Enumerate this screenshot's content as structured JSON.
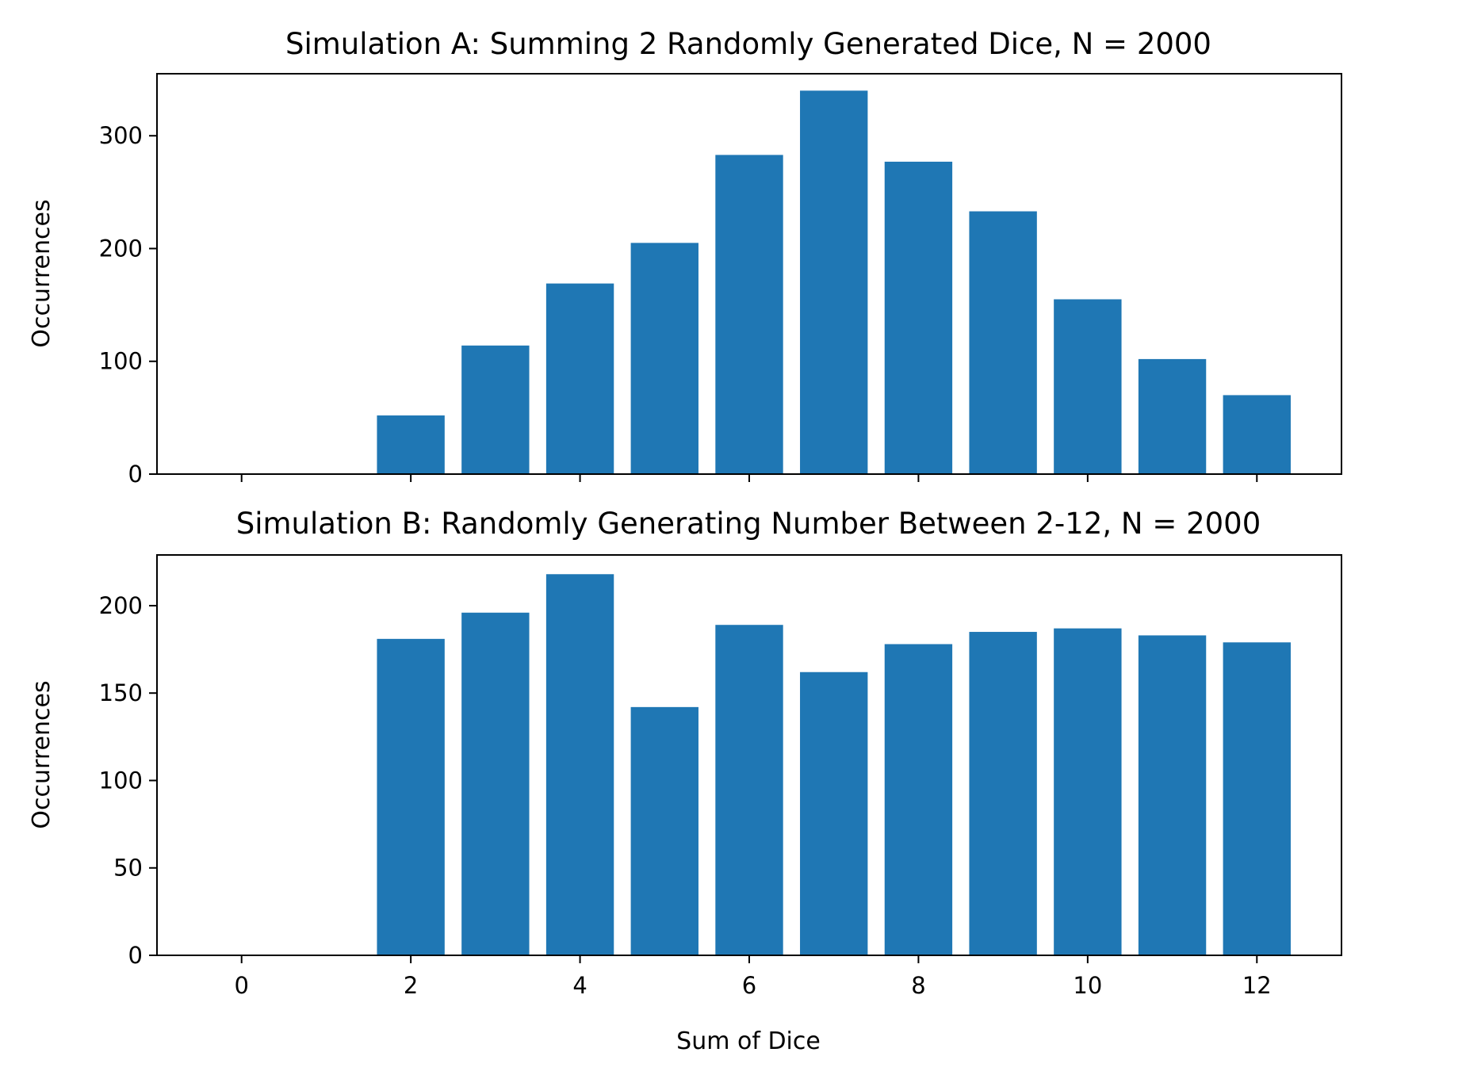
{
  "chart_data": [
    {
      "type": "bar",
      "title": "Simulation A: Summing 2 Randomly Generated Dice, N = 2000",
      "xlabel": "",
      "ylabel": "Occurrences",
      "color": "#1f77b4",
      "x": [
        2,
        3,
        4,
        5,
        6,
        7,
        8,
        9,
        10,
        11,
        12
      ],
      "values": [
        52,
        114,
        169,
        205,
        283,
        340,
        277,
        233,
        155,
        102,
        70
      ],
      "xlim": [
        -1,
        13
      ],
      "ylim": [
        0,
        355
      ],
      "xticks": [
        0,
        2,
        4,
        6,
        8,
        10,
        12
      ],
      "xtick_labels_shown": false,
      "yticks": [
        0,
        100,
        200,
        300
      ],
      "grid": false
    },
    {
      "type": "bar",
      "title": "Simulation B: Randomly Generating Number Between 2-12, N = 2000",
      "xlabel": "Sum of Dice",
      "ylabel": "Occurrences",
      "color": "#1f77b4",
      "x": [
        2,
        3,
        4,
        5,
        6,
        7,
        8,
        9,
        10,
        11,
        12
      ],
      "values": [
        181,
        196,
        218,
        142,
        189,
        162,
        178,
        185,
        187,
        183,
        179
      ],
      "xlim": [
        -1,
        13
      ],
      "ylim": [
        0,
        229
      ],
      "xticks": [
        0,
        2,
        4,
        6,
        8,
        10,
        12
      ],
      "xtick_labels_shown": true,
      "yticks": [
        0,
        50,
        100,
        150,
        200
      ],
      "grid": false
    }
  ]
}
